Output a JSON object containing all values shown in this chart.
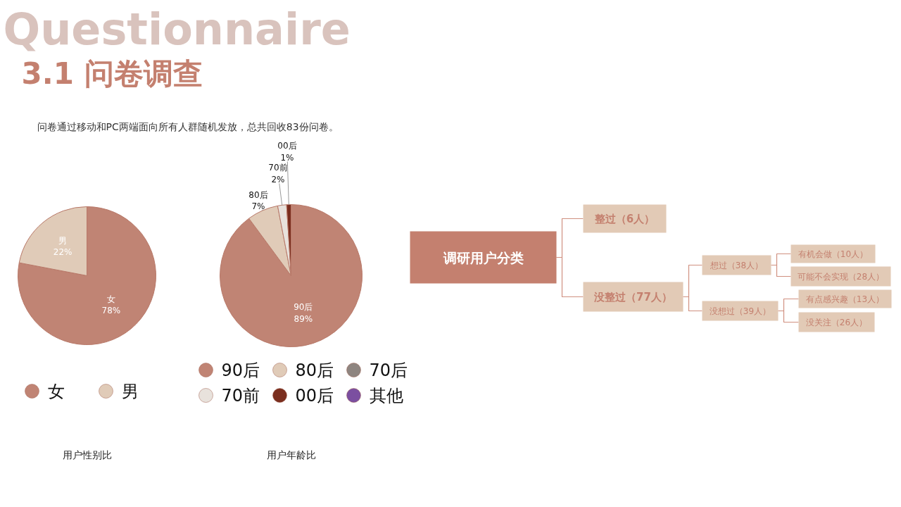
{
  "chart_data": [
    {
      "type": "pie",
      "title": "用户性别比",
      "annotations": [
        "Questionnaire",
        "3.1   问卷调查",
        "问卷通过移动和PC两端面向所有人群随机发放，总共回收83份问卷。"
      ],
      "categories": [
        "女",
        "男"
      ],
      "values": [
        78,
        22
      ],
      "value_labels": [
        "78%",
        "22%"
      ],
      "colors": [
        "#c08474",
        "#e0cbb8"
      ],
      "legend": "bottom"
    },
    {
      "type": "pie",
      "title": "用户年龄比",
      "categories": [
        "90后",
        "80后",
        "70后",
        "70前",
        "00后",
        "其他"
      ],
      "values": [
        89,
        7,
        0,
        2,
        1,
        0
      ],
      "value_labels": [
        "89%",
        "7%",
        null,
        "2%",
        "1%",
        null
      ],
      "colors": [
        "#c08474",
        "#e0cbb8",
        "#8e8580",
        "#e8e2dc",
        "#7a2e1e",
        "#7b4fa0"
      ],
      "legend": "bottom"
    },
    {
      "type": "other",
      "annotations": [
        "调研用户分类",
        "整过（6人）",
        "没整过（77人）",
        "想过（38人）",
        "没想过（39人）",
        "有机会做（10人）",
        "可能不会实现（28人）",
        "有点感兴趣（13人）",
        "没关注（26人）"
      ]
    }
  ]
}
